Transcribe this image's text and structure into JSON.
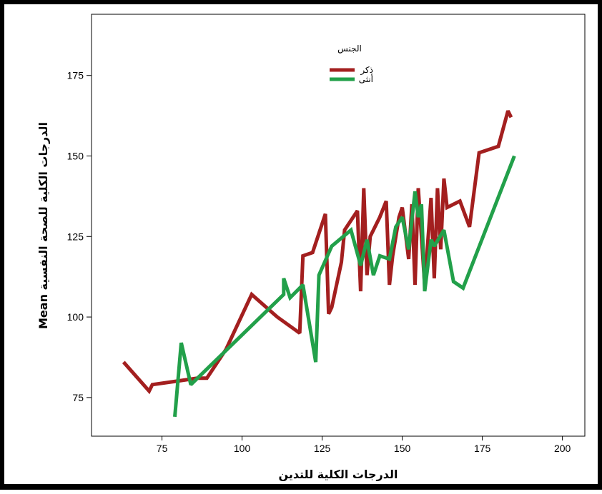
{
  "chart_data": {
    "type": "line",
    "title": "",
    "xlabel": "الدرجات الكلية للتدين",
    "ylabel": "Mean الدرجات الكلية للصحة النفسية",
    "xlim": [
      53,
      207
    ],
    "ylim": [
      63,
      194
    ],
    "x_ticks": [
      75,
      100,
      125,
      150,
      175,
      200
    ],
    "y_ticks": [
      75,
      100,
      125,
      150,
      175
    ],
    "grid": false,
    "legend": {
      "title": "الجنس",
      "position": "top-center"
    },
    "series": [
      {
        "name": "ذكر",
        "color": "#a31f1f",
        "points": [
          [
            63,
            86
          ],
          [
            71,
            77
          ],
          [
            72,
            79
          ],
          [
            86,
            81
          ],
          [
            89,
            81
          ],
          [
            95,
            90
          ],
          [
            103,
            107
          ],
          [
            111,
            100
          ],
          [
            118,
            95
          ],
          [
            119,
            119
          ],
          [
            122,
            120
          ],
          [
            126,
            132
          ],
          [
            127,
            101
          ],
          [
            128,
            103
          ],
          [
            131,
            117
          ],
          [
            132,
            127
          ],
          [
            136,
            133
          ],
          [
            137,
            108
          ],
          [
            138,
            140
          ],
          [
            139,
            113
          ],
          [
            140,
            125
          ],
          [
            143,
            131
          ],
          [
            145,
            136
          ],
          [
            146,
            110
          ],
          [
            147,
            119
          ],
          [
            149,
            131
          ],
          [
            150,
            134
          ],
          [
            152,
            118
          ],
          [
            153,
            135
          ],
          [
            154,
            110
          ],
          [
            155,
            140
          ],
          [
            157,
            110
          ],
          [
            159,
            137
          ],
          [
            160,
            112
          ],
          [
            161,
            140
          ],
          [
            162,
            121
          ],
          [
            163,
            143
          ],
          [
            164,
            134
          ],
          [
            168,
            136
          ],
          [
            171,
            128
          ],
          [
            174,
            151
          ],
          [
            180,
            153
          ],
          [
            183,
            164
          ],
          [
            184,
            162
          ]
        ]
      },
      {
        "name": "أنثى",
        "color": "#22a04a",
        "points": [
          [
            79,
            69
          ],
          [
            81,
            92
          ],
          [
            84,
            79
          ],
          [
            113,
            107
          ],
          [
            113,
            112
          ],
          [
            115,
            106
          ],
          [
            119,
            110
          ],
          [
            123,
            86
          ],
          [
            124,
            113
          ],
          [
            128,
            122
          ],
          [
            134,
            127
          ],
          [
            137,
            116
          ],
          [
            139,
            124
          ],
          [
            141,
            113
          ],
          [
            143,
            119
          ],
          [
            146,
            118
          ],
          [
            148,
            128
          ],
          [
            150,
            131
          ],
          [
            152,
            121
          ],
          [
            154,
            139
          ],
          [
            155,
            131
          ],
          [
            156,
            135
          ],
          [
            157,
            108
          ],
          [
            159,
            124
          ],
          [
            160,
            122
          ],
          [
            163,
            127
          ],
          [
            166,
            111
          ],
          [
            169,
            109
          ],
          [
            185,
            150
          ]
        ]
      }
    ]
  }
}
